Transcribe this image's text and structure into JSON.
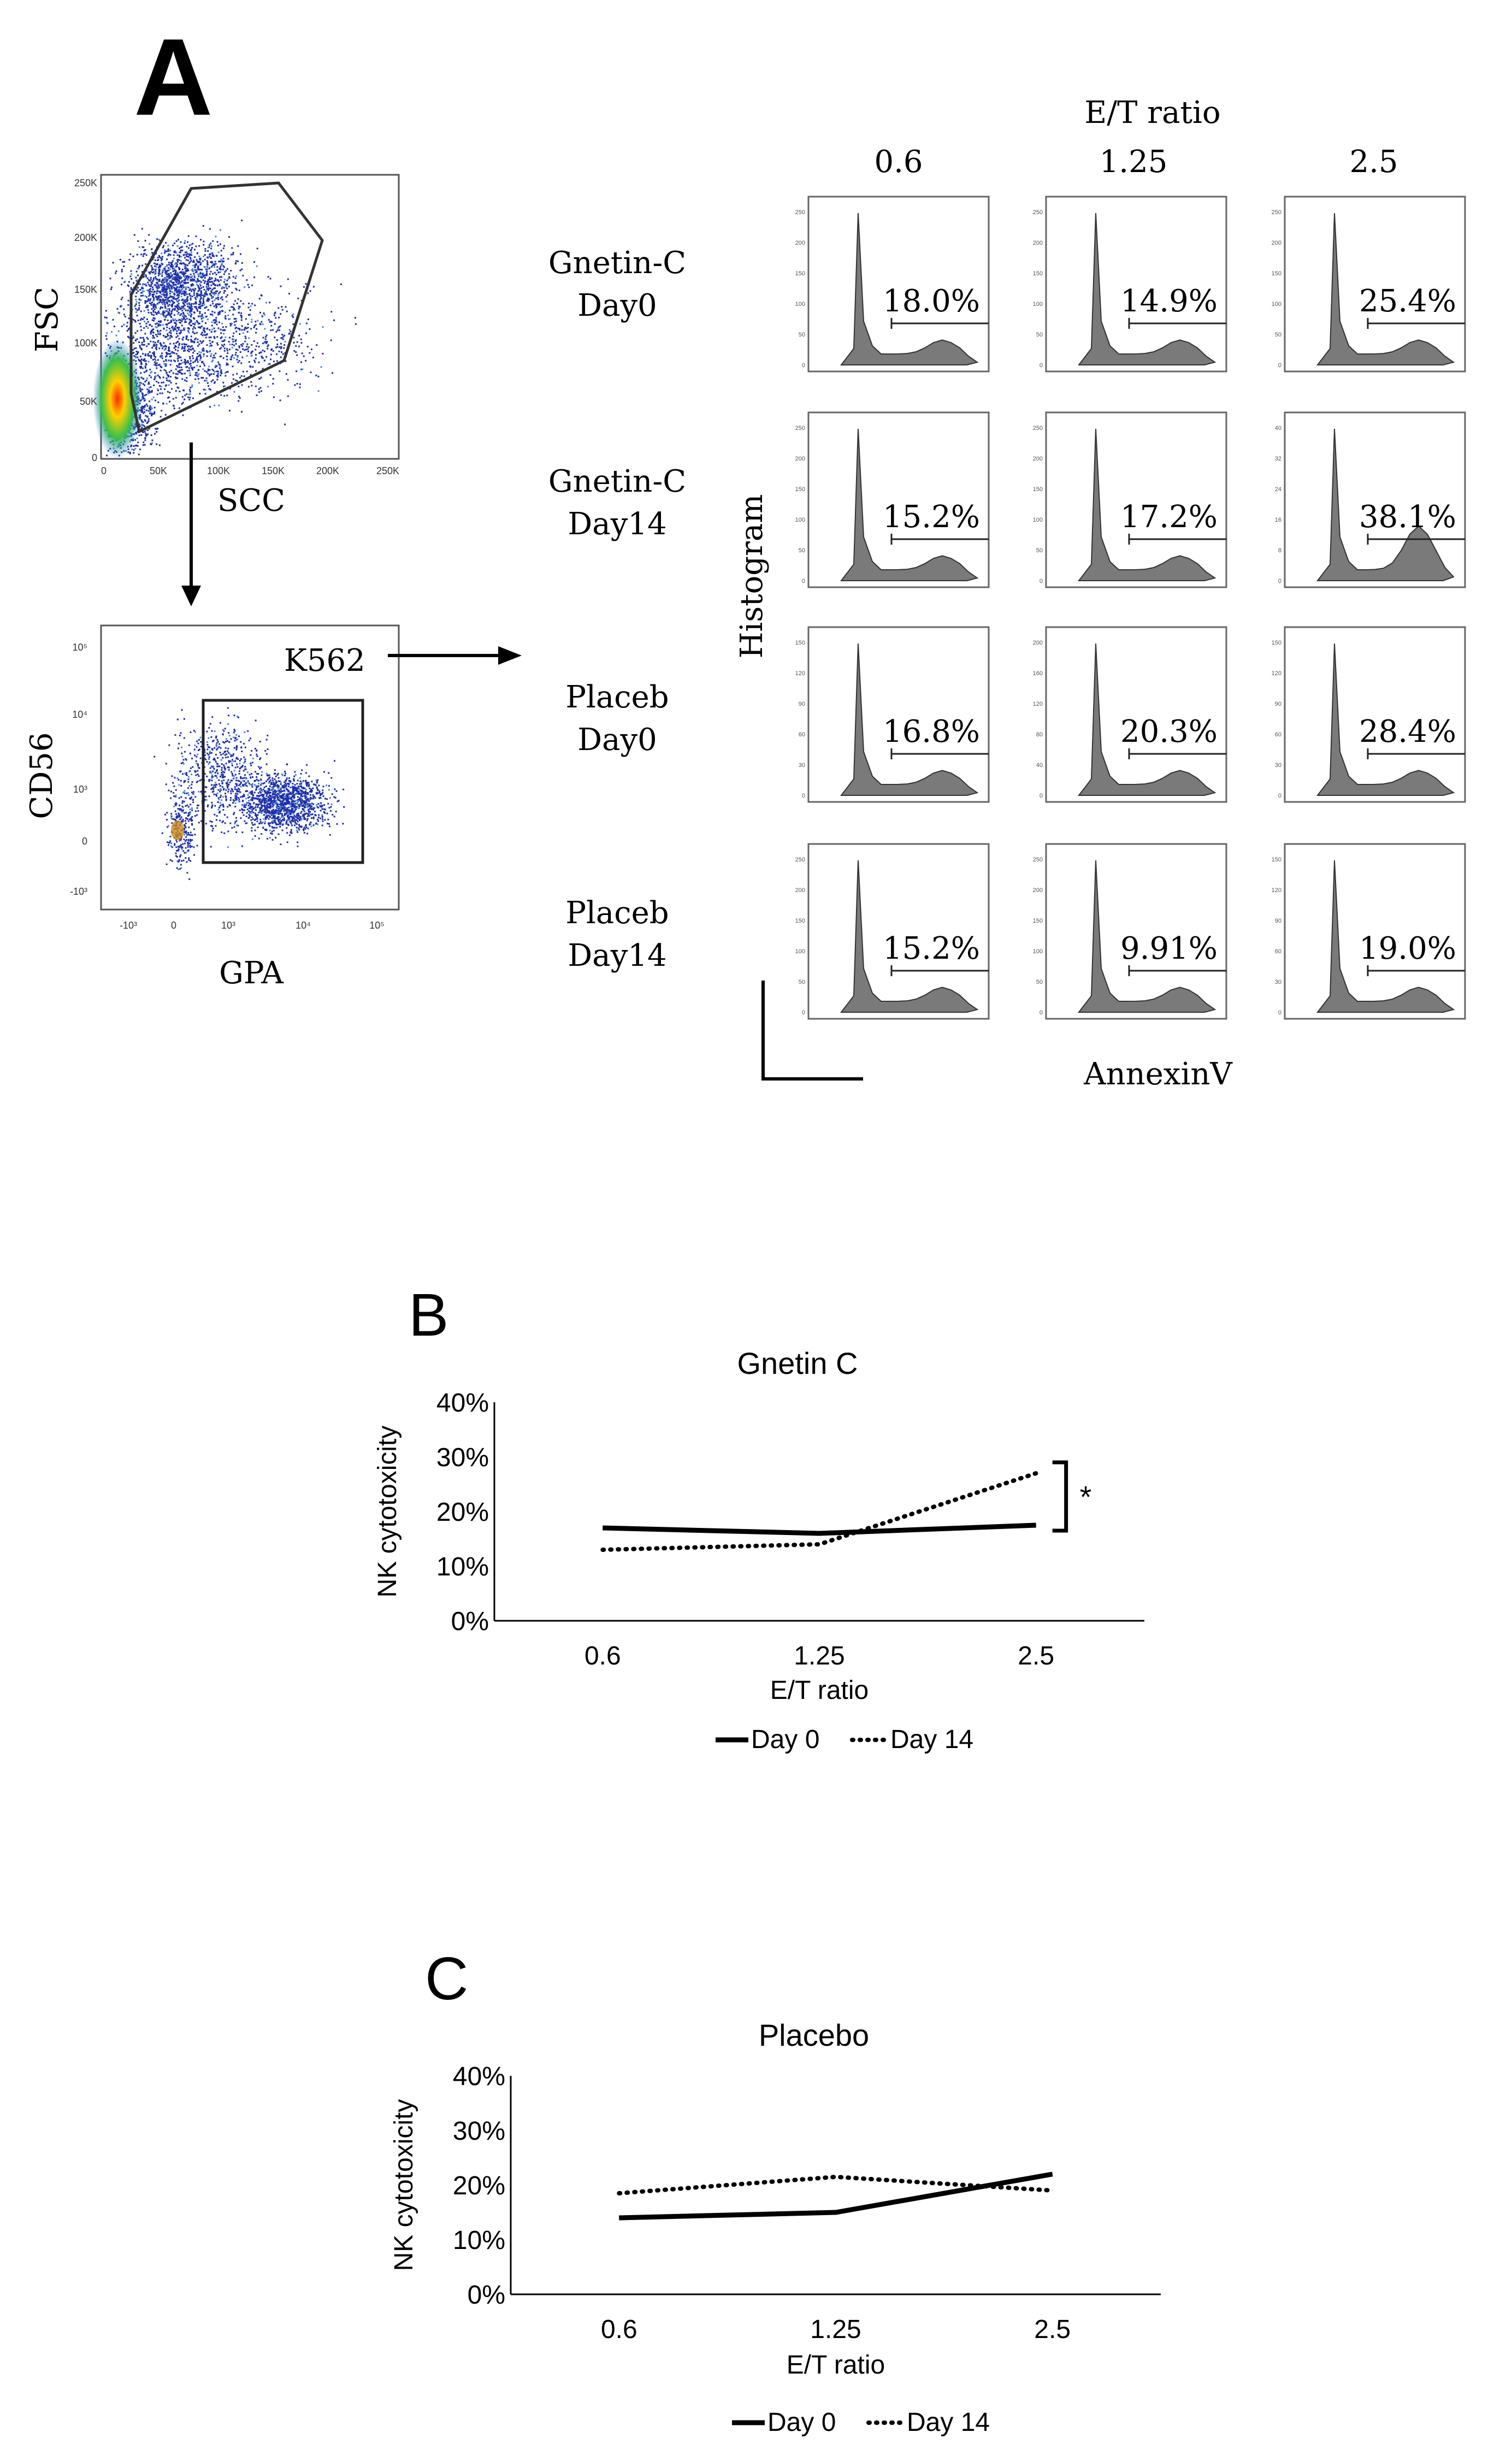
{
  "panel_labels": {
    "a": "A",
    "b": "B",
    "c": "C"
  },
  "gating": {
    "scatter1": {
      "ylabel": "FSC",
      "xlabel": "SCC",
      "y_ticks": [
        "250K",
        "200K",
        "150K",
        "100K",
        "50K",
        "0"
      ],
      "x_ticks": [
        "0",
        "50K",
        "100K",
        "150K",
        "200K",
        "250K"
      ]
    },
    "scatter2": {
      "ylabel": "CD56",
      "xlabel": "GPA",
      "gate_label": "K562",
      "y_ticks": [
        "10⁵",
        "10⁴",
        "10³",
        "0",
        "-10³"
      ],
      "x_ticks": [
        "-10³",
        "0",
        "10³",
        "10⁴",
        "10⁵"
      ]
    }
  },
  "histograms": {
    "title": "E/T ratio",
    "columns": [
      "0.6",
      "1.25",
      "2.5"
    ],
    "rows": [
      {
        "line1": "Gnetin-C",
        "line2": "Day0",
        "pct": [
          "18.0%",
          "14.9%",
          "25.4%"
        ],
        "ymax": [
          250,
          250,
          250
        ]
      },
      {
        "line1": "Gnetin-C",
        "line2": "Day14",
        "pct": [
          "15.2%",
          "17.2%",
          "38.1%"
        ],
        "ymax": [
          250,
          250,
          40
        ]
      },
      {
        "line1": "Placeb",
        "line2": "Day0",
        "pct": [
          "16.8%",
          "20.3%",
          "28.4%"
        ],
        "ymax": [
          150,
          200,
          150
        ]
      },
      {
        "line1": "Placeb",
        "line2": "Day14",
        "pct": [
          "15.2%",
          "9.91%",
          "19.0%"
        ],
        "ymax": [
          250,
          250,
          150
        ]
      }
    ],
    "ylabel": "Histogram",
    "xlabel": "AnnexinV"
  },
  "chart_data": [
    {
      "type": "line",
      "title": "Gnetin C",
      "xlabel": "E/T ratio",
      "ylabel": "NK cytotoxicity",
      "categories": [
        "0.6",
        "1.25",
        "2.5"
      ],
      "y_ticks": [
        "0%",
        "10%",
        "20%",
        "30%",
        "40%"
      ],
      "ylim": [
        0,
        40
      ],
      "series": [
        {
          "name": "Day 0",
          "style": "solid",
          "values": [
            17,
            16,
            17.5
          ]
        },
        {
          "name": "Day 14",
          "style": "dotted",
          "values": [
            13,
            14,
            27
          ]
        }
      ],
      "annotation": "*"
    },
    {
      "type": "line",
      "title": "Placebo",
      "xlabel": "E/T ratio",
      "ylabel": "NK cytotoxicity",
      "categories": [
        "0.6",
        "1.25",
        "2.5"
      ],
      "y_ticks": [
        "0%",
        "10%",
        "20%",
        "30%",
        "40%"
      ],
      "ylim": [
        0,
        40
      ],
      "series": [
        {
          "name": "Day 0",
          "style": "solid",
          "values": [
            14,
            15,
            22
          ]
        },
        {
          "name": "Day 14",
          "style": "dotted",
          "values": [
            18.5,
            21.5,
            19
          ]
        }
      ]
    }
  ]
}
